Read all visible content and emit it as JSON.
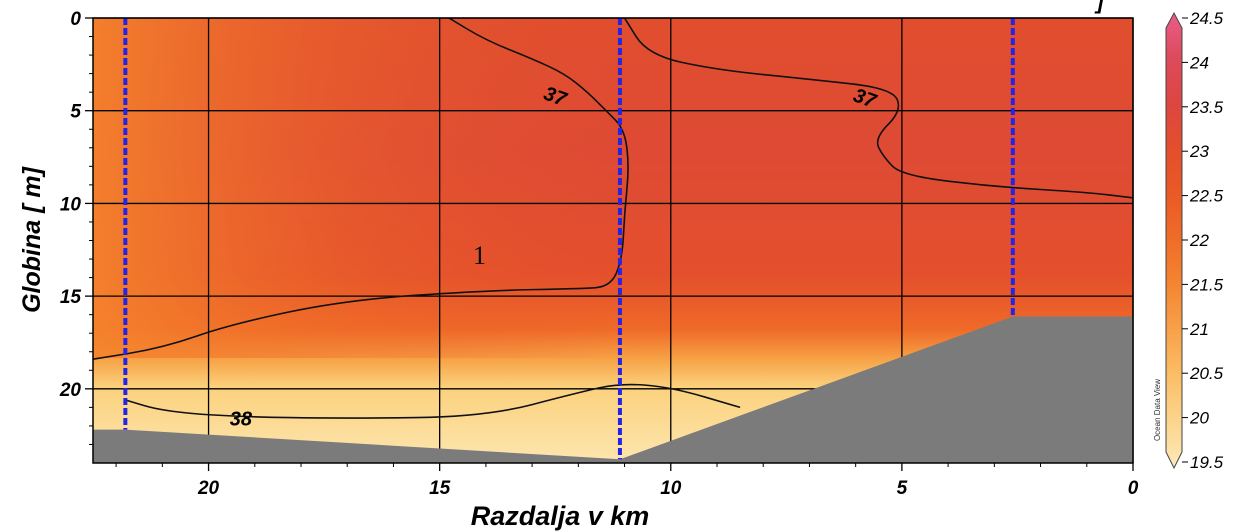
{
  "chart_data": {
    "type": "heatmap",
    "title": "",
    "title_partial_visible": "] ",
    "xlabel": "Razdalja v km",
    "ylabel": "Globina  [ m]",
    "xlim": [
      22.5,
      0
    ],
    "ylim": [
      0,
      24
    ],
    "x_ticks": [
      "20",
      "15",
      "10",
      "5",
      "0"
    ],
    "x_tick_values": [
      20,
      15,
      10,
      5,
      0
    ],
    "y_ticks": [
      "0",
      "5",
      "10",
      "15",
      "20"
    ],
    "y_tick_values": [
      0,
      5,
      10,
      15,
      20
    ],
    "grid": true,
    "colorbar": {
      "min": 19.5,
      "max": 24.5,
      "ticks": [
        "24.5",
        "24",
        "23.5",
        "23",
        "22.5",
        "22",
        "21.5",
        "21",
        "20.5",
        "20",
        "19.5"
      ],
      "tick_values": [
        24.5,
        24,
        23.5,
        23,
        22.5,
        22,
        21.5,
        21,
        20.5,
        20,
        19.5
      ],
      "colors": [
        "#fde9b6",
        "#fcd58f",
        "#fbbf67",
        "#f8a24a",
        "#f48632",
        "#ef6d28",
        "#ea5a26",
        "#e44e2c",
        "#dd4640",
        "#dd4a5c",
        "#ea5d89"
      ],
      "watermark": "Ocean Data View"
    },
    "stations_km": [
      21.8,
      11.1,
      2.6
    ],
    "station_color": "#2424e6",
    "bottom_color": "#7b7b7b",
    "bottom_profile": [
      {
        "x": 22.5,
        "depth": 22.2
      },
      {
        "x": 21.8,
        "depth": 22.2
      },
      {
        "x": 11.1,
        "depth": 23.8
      },
      {
        "x": 2.6,
        "depth": 16.1
      },
      {
        "x": 0,
        "depth": 16.1
      }
    ],
    "contours": [
      {
        "label": "37",
        "points": [
          [
            14.8,
            0
          ],
          [
            14,
            1.2
          ],
          [
            13,
            2.2
          ],
          [
            12.3,
            3.0
          ],
          [
            11.8,
            4.0
          ],
          [
            11.4,
            5.0
          ],
          [
            11.0,
            6.0
          ],
          [
            10.9,
            8.0
          ],
          [
            11.0,
            10.5
          ],
          [
            11.05,
            13.0
          ],
          [
            11.3,
            14.5
          ],
          [
            12.0,
            14.6
          ],
          [
            14.0,
            14.7
          ],
          [
            17.0,
            15.2
          ],
          [
            19.5,
            16.5
          ],
          [
            21.0,
            17.8
          ],
          [
            22.5,
            18.4
          ]
        ],
        "label_at": [
          12.5,
          4.2
        ]
      },
      {
        "label": "37",
        "points": [
          [
            11.0,
            0
          ],
          [
            10.5,
            2.0
          ],
          [
            9.0,
            2.8
          ],
          [
            7.0,
            3.3
          ],
          [
            5.2,
            3.8
          ],
          [
            5.0,
            5.0
          ],
          [
            5.6,
            6.5
          ],
          [
            5.4,
            7.5
          ],
          [
            5.0,
            8.5
          ],
          [
            3.0,
            9.1
          ],
          [
            1.0,
            9.4
          ],
          [
            0,
            9.7
          ]
        ],
        "label_at": [
          5.8,
          4.3
        ]
      },
      {
        "label": "38",
        "points": [
          [
            21.8,
            20.6
          ],
          [
            21.0,
            21.2
          ],
          [
            19.5,
            21.5
          ],
          [
            17.0,
            21.6
          ],
          [
            14.0,
            21.5
          ],
          [
            12.0,
            20.2
          ],
          [
            11.1,
            19.7
          ],
          [
            10.0,
            19.9
          ],
          [
            8.5,
            21.0
          ]
        ],
        "label_at": [
          19.3,
          21.6
        ]
      }
    ],
    "annotation": "1"
  }
}
